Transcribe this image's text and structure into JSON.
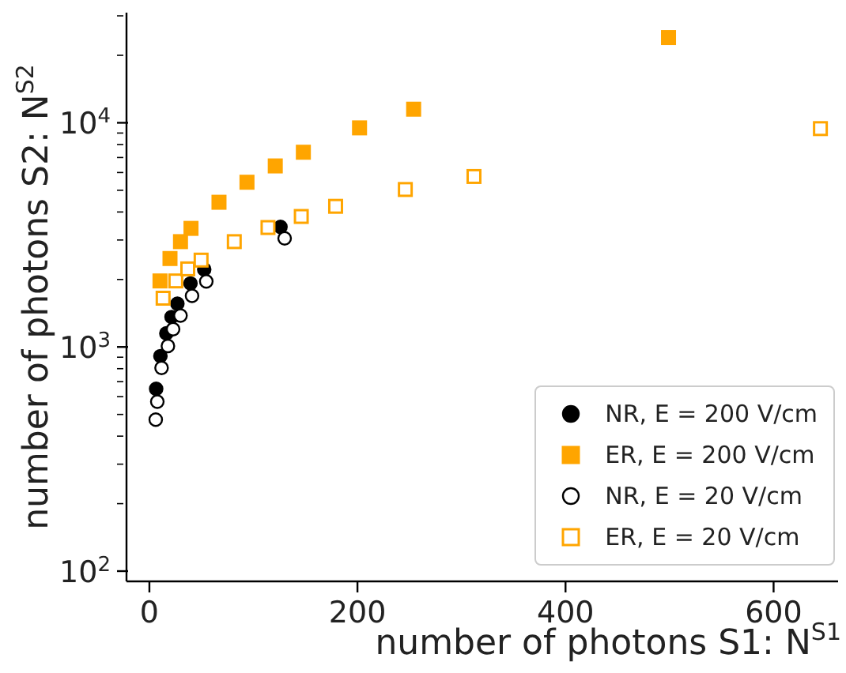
{
  "chart_data": {
    "type": "scatter",
    "xlabel": "number of photons S1:  N$^{S1}$",
    "ylabel": "number of photons S2:  N$^{S2}$",
    "log": "y",
    "xlim": [
      -22,
      662
    ],
    "xticks": [
      0,
      200,
      400,
      600
    ],
    "ylim": [
      90,
      31000
    ],
    "yticks": [
      {
        "value": 100,
        "label": "10$^{2}$"
      },
      {
        "value": 200,
        "label": null
      },
      {
        "value": 300,
        "label": null
      },
      {
        "value": 400,
        "label": null
      },
      {
        "value": 500,
        "label": null
      },
      {
        "value": 600,
        "label": null
      },
      {
        "value": 700,
        "label": null
      },
      {
        "value": 800,
        "label": null
      },
      {
        "value": 900,
        "label": null
      },
      {
        "value": 1000,
        "label": "10$^{3}$"
      },
      {
        "value": 2000,
        "label": null
      },
      {
        "value": 3000,
        "label": null
      },
      {
        "value": 4000,
        "label": null
      },
      {
        "value": 5000,
        "label": null
      },
      {
        "value": 6000,
        "label": null
      },
      {
        "value": 7000,
        "label": null
      },
      {
        "value": 8000,
        "label": null
      },
      {
        "value": 9000,
        "label": null
      },
      {
        "value": 10000,
        "label": "10$^{4}$"
      },
      {
        "value": 20000,
        "label": null
      },
      {
        "value": 30000,
        "label": null
      }
    ],
    "grid": false,
    "legend": "bottom right",
    "series": [
      {
        "name": "NR, E = 200 V/cm",
        "color": "#000000",
        "marker": "circle",
        "x": [
          6.5,
          10.6,
          16.3,
          21.3,
          26.9,
          39.5,
          52.7,
          126
        ],
        "values": [
          650,
          910,
          1150,
          1360,
          1560,
          1920,
          2220,
          3430
        ]
      },
      {
        "name": "ER, E = 200 V/cm",
        "color": "#ffa500",
        "marker": "square",
        "x": [
          10.2,
          19.8,
          29.9,
          40,
          66.9,
          93.8,
          121,
          148,
          202,
          254,
          499
        ],
        "values": [
          1970,
          2480,
          2950,
          3380,
          4420,
          5430,
          6420,
          7390,
          9490,
          11500,
          24000
        ]
      },
      {
        "name": "NR, E = 20 V/cm",
        "color": "#000000",
        "marker": "circle",
        "x": [
          6.1,
          7.6,
          11.7,
          17.8,
          22.8,
          29.9,
          41,
          54.7,
          130
        ],
        "values": [
          474,
          570,
          806,
          1010,
          1200,
          1380,
          1690,
          1960,
          3050
        ]
      },
      {
        "name": "ER, E = 20 V/cm",
        "color": "#ffa500",
        "marker": "square",
        "x": [
          13.2,
          25.4,
          36.9,
          49.7,
          81.6,
          114,
          146,
          179,
          246,
          312,
          645
        ],
        "values": [
          1650,
          1970,
          2230,
          2440,
          2950,
          3410,
          3820,
          4240,
          5040,
          5760,
          9420
        ]
      }
    ]
  }
}
